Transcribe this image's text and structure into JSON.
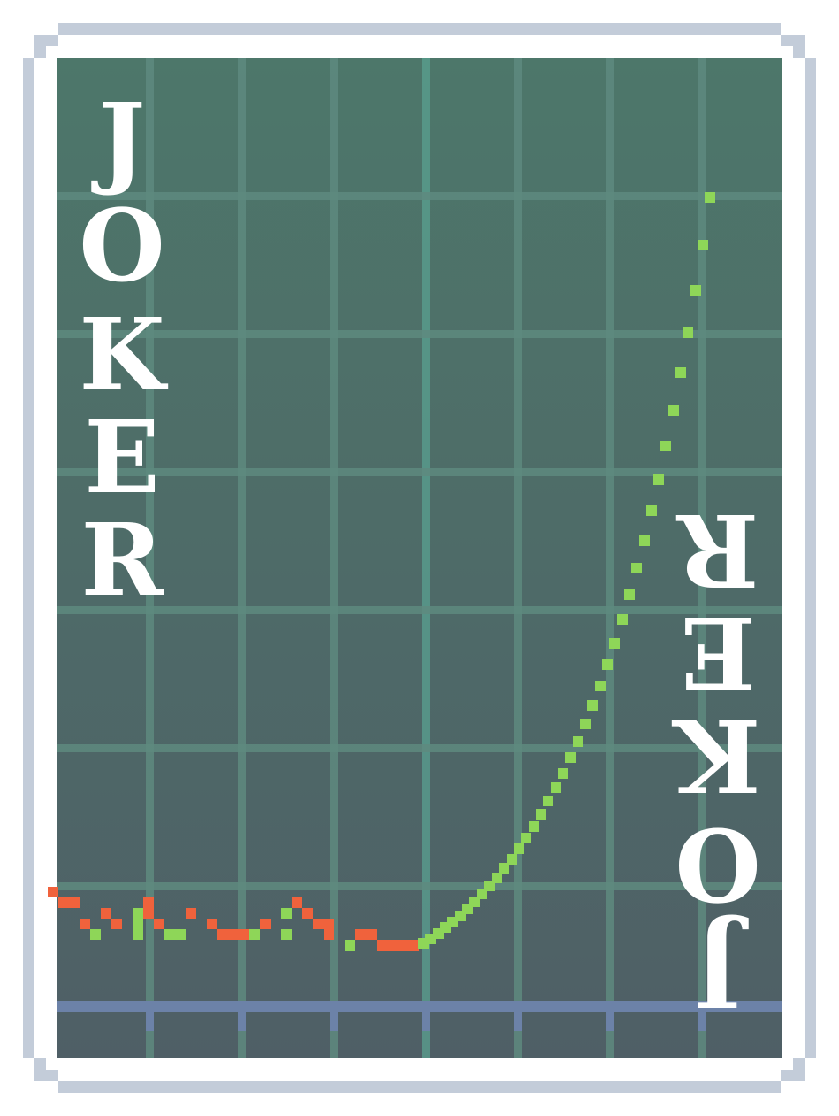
{
  "card": {
    "title": "JOKER",
    "letters": [
      "J",
      "O",
      "K",
      "E",
      "R"
    ],
    "colors": {
      "outer_border": "#c3ccd9",
      "inner_border": "#ffffff",
      "felt_top": "#4d776a",
      "felt_bottom": "#4f5f66",
      "grid_line": "#5e8a7f",
      "grid_line_mid": "#5aa090",
      "baseline": "#6c82a8",
      "history_line": "#8ed658",
      "history_down": "#f0623c",
      "projection_dot": "#8ed658",
      "text": "#ffffff"
    }
  },
  "chart_data": {
    "type": "line",
    "title": "",
    "xlabel": "",
    "ylabel": "",
    "grid": true,
    "x_divisions": 8,
    "y_divisions": 7,
    "history": [
      {
        "x": 0.0,
        "y": 1.45
      },
      {
        "x": 0.2,
        "y": 1.3
      },
      {
        "x": 0.35,
        "y": 1.1
      },
      {
        "x": 0.45,
        "y": 1.0
      },
      {
        "x": 0.55,
        "y": 1.15
      },
      {
        "x": 0.7,
        "y": 1.05
      },
      {
        "x": 0.85,
        "y": 1.0
      },
      {
        "x": 0.95,
        "y": 1.4
      },
      {
        "x": 1.1,
        "y": 1.1
      },
      {
        "x": 1.25,
        "y": 0.9
      },
      {
        "x": 1.35,
        "y": 0.95
      },
      {
        "x": 1.5,
        "y": 1.15
      },
      {
        "x": 1.65,
        "y": 1.05
      },
      {
        "x": 1.8,
        "y": 1.0
      },
      {
        "x": 2.0,
        "y": 0.95
      },
      {
        "x": 2.15,
        "y": 0.9
      },
      {
        "x": 2.3,
        "y": 1.05
      },
      {
        "x": 2.45,
        "y": 1.0
      },
      {
        "x": 2.6,
        "y": 1.3
      },
      {
        "x": 2.8,
        "y": 1.1
      },
      {
        "x": 3.0,
        "y": 0.95
      },
      {
        "x": 3.15,
        "y": 0.85
      },
      {
        "x": 3.35,
        "y": 1.0
      },
      {
        "x": 3.55,
        "y": 0.85
      },
      {
        "x": 3.9,
        "y": 0.75
      }
    ],
    "projection": {
      "x_start": 3.9,
      "x_end": 7.1,
      "y_start": 0.75,
      "y_end": 10.5,
      "curve": "exponential",
      "style": "dotted"
    }
  }
}
